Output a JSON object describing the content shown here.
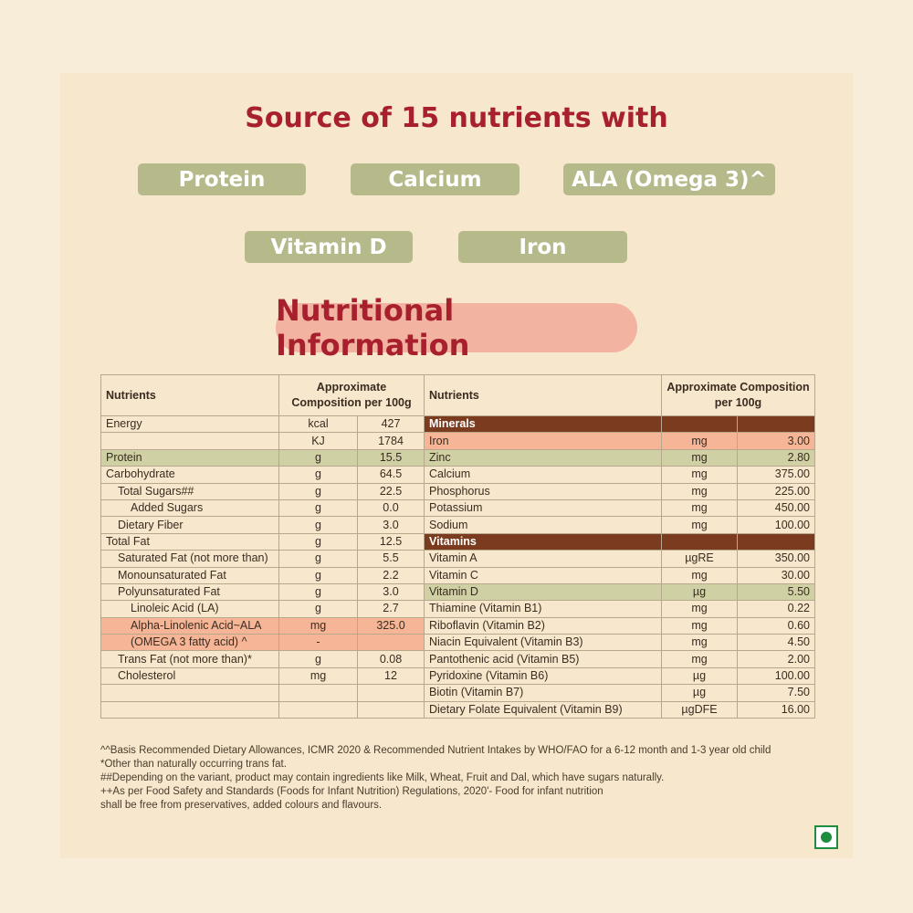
{
  "headline": "Source of 15 nutrients with",
  "pills": [
    "Protein",
    "Calcium",
    "ALA (Omega 3)^",
    "Vitamin D",
    "Iron"
  ],
  "banner": "Nutritional Information",
  "left_table": {
    "col_nutrients": "Nutrients",
    "col_composition": "Approximate Composition per 100g",
    "rows": [
      {
        "name": "Energy",
        "unit": "kcal",
        "value": "427",
        "indent": 0,
        "hl": ""
      },
      {
        "name": "",
        "unit": "KJ",
        "value": "1784",
        "indent": 0,
        "hl": ""
      },
      {
        "name": "Protein",
        "unit": "g",
        "value": "15.5",
        "indent": 0,
        "hl": "green"
      },
      {
        "name": "Carbohydrate",
        "unit": "g",
        "value": "64.5",
        "indent": 0,
        "hl": ""
      },
      {
        "name": "Total Sugars##",
        "unit": "g",
        "value": "22.5",
        "indent": 1,
        "hl": ""
      },
      {
        "name": "Added Sugars",
        "unit": "g",
        "value": "0.0",
        "indent": 2,
        "hl": ""
      },
      {
        "name": "Dietary Fiber",
        "unit": "g",
        "value": "3.0",
        "indent": 1,
        "hl": ""
      },
      {
        "name": "Total Fat",
        "unit": "g",
        "value": "12.5",
        "indent": 0,
        "hl": ""
      },
      {
        "name": "Saturated Fat (not more than)",
        "unit": "g",
        "value": "5.5",
        "indent": 1,
        "hl": ""
      },
      {
        "name": "Monounsaturated Fat",
        "unit": "g",
        "value": "2.2",
        "indent": 1,
        "hl": ""
      },
      {
        "name": "Polyunsaturated Fat",
        "unit": "g",
        "value": "3.0",
        "indent": 1,
        "hl": ""
      },
      {
        "name": "Linoleic Acid (LA)",
        "unit": "g",
        "value": "2.7",
        "indent": 2,
        "hl": ""
      },
      {
        "name": "Alpha-Linolenic Acid~ALA",
        "unit": "mg",
        "value": "325.0",
        "indent": 2,
        "hl": "salmon"
      },
      {
        "name": "(OMEGA 3 fatty acid) ^",
        "unit": "-",
        "value": "",
        "indent": 2,
        "hl": "salmon"
      },
      {
        "name": "Trans Fat (not more than)*",
        "unit": "g",
        "value": "0.08",
        "indent": 1,
        "hl": ""
      },
      {
        "name": "Cholesterol",
        "unit": "mg",
        "value": "12",
        "indent": 1,
        "hl": ""
      },
      {
        "name": "",
        "unit": "",
        "value": "",
        "indent": 0,
        "hl": ""
      },
      {
        "name": "",
        "unit": "",
        "value": "",
        "indent": 0,
        "hl": ""
      }
    ]
  },
  "right_table": {
    "col_nutrients": "Nutrients",
    "col_composition": "Approximate Composition per 100g",
    "rows": [
      {
        "name": "Minerals",
        "unit": "",
        "value": "",
        "hl": "brown"
      },
      {
        "name": "Iron",
        "unit": "mg",
        "value": "3.00",
        "hl": "salmon"
      },
      {
        "name": "Zinc",
        "unit": "mg",
        "value": "2.80",
        "hl": "green"
      },
      {
        "name": "Calcium",
        "unit": "mg",
        "value": "375.00",
        "hl": ""
      },
      {
        "name": "Phosphorus",
        "unit": "mg",
        "value": "225.00",
        "hl": ""
      },
      {
        "name": "Potassium",
        "unit": "mg",
        "value": "450.00",
        "hl": ""
      },
      {
        "name": "Sodium",
        "unit": "mg",
        "value": "100.00",
        "hl": ""
      },
      {
        "name": "Vitamins",
        "unit": "",
        "value": "",
        "hl": "brown"
      },
      {
        "name": "Vitamin A",
        "unit": "µgRE",
        "value": "350.00",
        "hl": ""
      },
      {
        "name": "Vitamin C",
        "unit": "mg",
        "value": "30.00",
        "hl": ""
      },
      {
        "name": "Vitamin D",
        "unit": "µg",
        "value": "5.50",
        "hl": "green"
      },
      {
        "name": "Thiamine (Vitamin B1)",
        "unit": "mg",
        "value": "0.22",
        "hl": ""
      },
      {
        "name": "Riboflavin (Vitamin B2)",
        "unit": "mg",
        "value": "0.60",
        "hl": ""
      },
      {
        "name": "Niacin Equivalent (Vitamin B3)",
        "unit": "mg",
        "value": "4.50",
        "hl": ""
      },
      {
        "name": "Pantothenic acid (Vitamin B5)",
        "unit": "mg",
        "value": "2.00",
        "hl": ""
      },
      {
        "name": "Pyridoxine (Vitamin B6)",
        "unit": "µg",
        "value": "100.00",
        "hl": ""
      },
      {
        "name": "Biotin (Vitamin B7)",
        "unit": "µg",
        "value": "7.50",
        "hl": ""
      },
      {
        "name": "Dietary Folate Equivalent (Vitamin B9)",
        "unit": "µgDFE",
        "value": "16.00",
        "hl": ""
      }
    ]
  },
  "footnotes": [
    "^^Basis Recommended Dietary Allowances, ICMR 2020 & Recommended Nutrient Intakes by WHO/FAO for a 6-12 month and 1-3  year old child",
    "*Other than naturally occurring trans fat.",
    "##Depending on the variant, product may contain ingredients like Milk, Wheat, Fruit and Dal, which have sugars naturally.",
    "++As per Food Safety and Standards (Foods for Infant Nutrition) Regulations, 2020'- Food for infant nutrition",
    " shall be free from preservatives, added colours and flavours."
  ],
  "colors": {
    "accent_red": "#a8202e",
    "pill_green": "#b6ba8a",
    "highlight_green": "#cfd0a4",
    "highlight_salmon": "#f5b596",
    "section_brown": "#7a3b1e",
    "veg_green": "#1e8e3e"
  },
  "icons": {
    "veg_mark": "veg-symbol-icon"
  }
}
